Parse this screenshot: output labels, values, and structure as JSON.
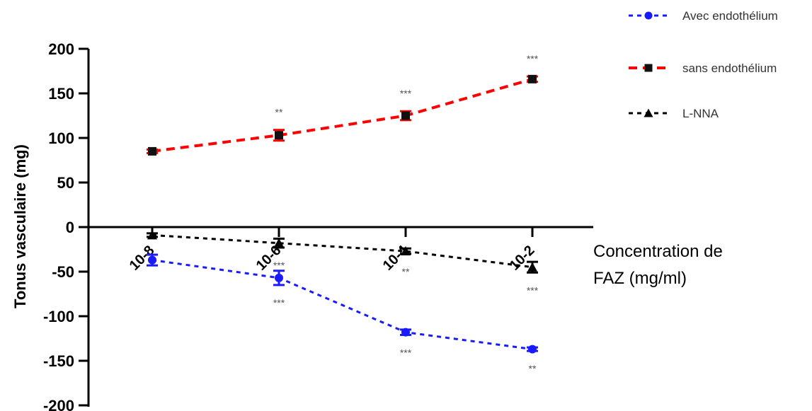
{
  "chart_data": {
    "type": "line",
    "title": "",
    "xlabel": "Concentration de FAZ (mg/ml)",
    "xlabel_lines": [
      "Concentration de",
      "FAZ (mg/ml)"
    ],
    "ylabel": "Tonus vasculaire (mg)",
    "ylim": [
      -200,
      200
    ],
    "yticks": [
      200,
      150,
      100,
      50,
      0,
      -50,
      -100,
      -150,
      -200
    ],
    "categories": [
      "10-8",
      "10-6",
      "10-4",
      "10-2"
    ],
    "series": [
      {
        "name": "Avec endothélium",
        "color": "#1a1aff",
        "marker": "circle",
        "values": [
          -37,
          -57,
          -118,
          -137
        ],
        "errors": [
          6,
          8,
          3,
          2
        ],
        "significance": [
          "",
          "***",
          "***",
          "**"
        ]
      },
      {
        "name": "sans endothélium",
        "color": "#ff0000",
        "marker": "square",
        "values": [
          85,
          103,
          125,
          166
        ],
        "errors": [
          2,
          6,
          5,
          3
        ],
        "significance": [
          "",
          "**",
          "***",
          "***"
        ]
      },
      {
        "name": "L-NNA",
        "color": "#000000",
        "marker": "triangle",
        "values": [
          -9,
          -18,
          -27,
          -45
        ],
        "errors": [
          2,
          5,
          3,
          6
        ],
        "significance": [
          "",
          "***",
          "**",
          "***"
        ]
      }
    ],
    "legend_position": "top-right",
    "grid": false
  }
}
